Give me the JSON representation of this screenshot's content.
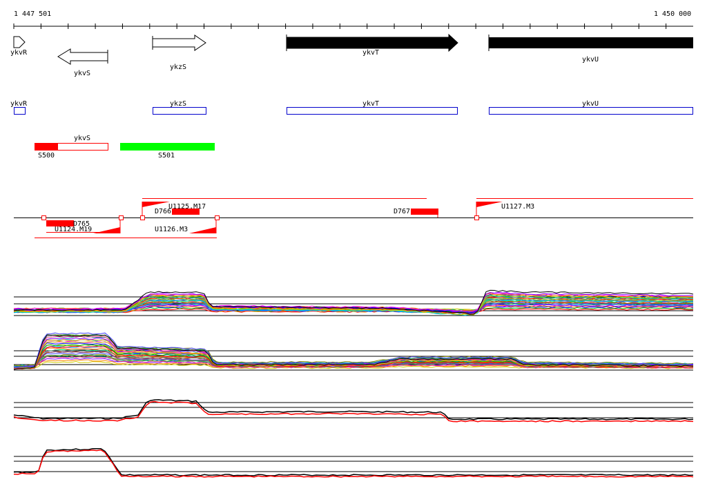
{
  "ruler": {
    "start_label": "1 447 501",
    "end_label": "1 450 000"
  },
  "colors": {
    "black": "#000000",
    "blue": "#0000cc",
    "red": "#ff0000",
    "green": "#00ff00",
    "sense": "#ff0000",
    "antisense": "#ff0000"
  },
  "genes": {
    "ykvR": "ykvR",
    "ykvS": "ykvS",
    "ykzS": "ykzS",
    "ykvT": "ykvT",
    "ykvU": "ykvU"
  },
  "segments": {
    "S500": "S500",
    "S501": "S501"
  },
  "upshifts": {
    "U1125": "U1125.M17",
    "U1127": "U1127.M3",
    "U1124": "U1124.M19",
    "U1126": "U1126.M3"
  },
  "downshifts": {
    "D765": "D765",
    "D766": "D766",
    "D767": "D767"
  },
  "tracks": [
    {
      "id": "condition-profiles-1",
      "label": ""
    },
    {
      "id": "condition-profiles-2",
      "label": ""
    },
    {
      "id": "strand-plus-profile",
      "label": ""
    },
    {
      "id": "strand-minus-profile",
      "label": ""
    }
  ]
}
